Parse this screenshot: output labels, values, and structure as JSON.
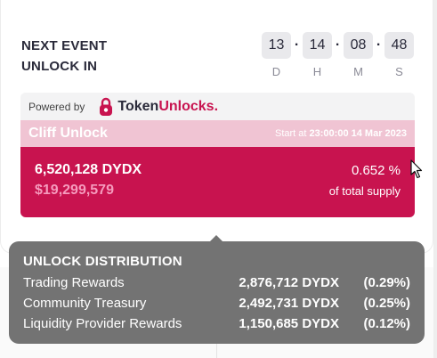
{
  "header": {
    "line1": "NEXT EVENT",
    "line2": "UNLOCK IN"
  },
  "countdown": [
    {
      "value": "13",
      "label": "D"
    },
    {
      "value": "14",
      "label": "H"
    },
    {
      "value": "08",
      "label": "M"
    },
    {
      "value": "48",
      "label": "S"
    }
  ],
  "widget": {
    "powered_by": "Powered by",
    "brand_part1": "Token",
    "brand_part2": "Unlocks",
    "brand_dot": ".",
    "cliff_title": "Cliff Unlock",
    "start_prefix": "Start at",
    "start_value": "23:00:00 14 Mar 2023",
    "amount": "6,520,128 DYDX",
    "usd_value": "$19,299,579",
    "percent": "0.652 %",
    "percent_caption": "of total supply"
  },
  "distribution": {
    "title": "UNLOCK DISTRIBUTION",
    "rows": [
      {
        "name": "Trading Rewards",
        "amount": "2,876,712 DYDX",
        "pct": "(0.29%)"
      },
      {
        "name": "Community Treasury",
        "amount": "2,492,731 DYDX",
        "pct": "(0.25%)"
      },
      {
        "name": "Liquidity Provider Rewards",
        "amount": "1,150,685 DYDX",
        "pct": "(0.12%)"
      }
    ]
  },
  "colors": {
    "brand": "#c8134f",
    "cliff_bar": "#f0c4d3",
    "usd_text": "#f59bbd",
    "tooltip_bg": "#737373"
  },
  "icons": {
    "logo": "padlock-icon",
    "cursor": "mouse-pointer-icon"
  }
}
